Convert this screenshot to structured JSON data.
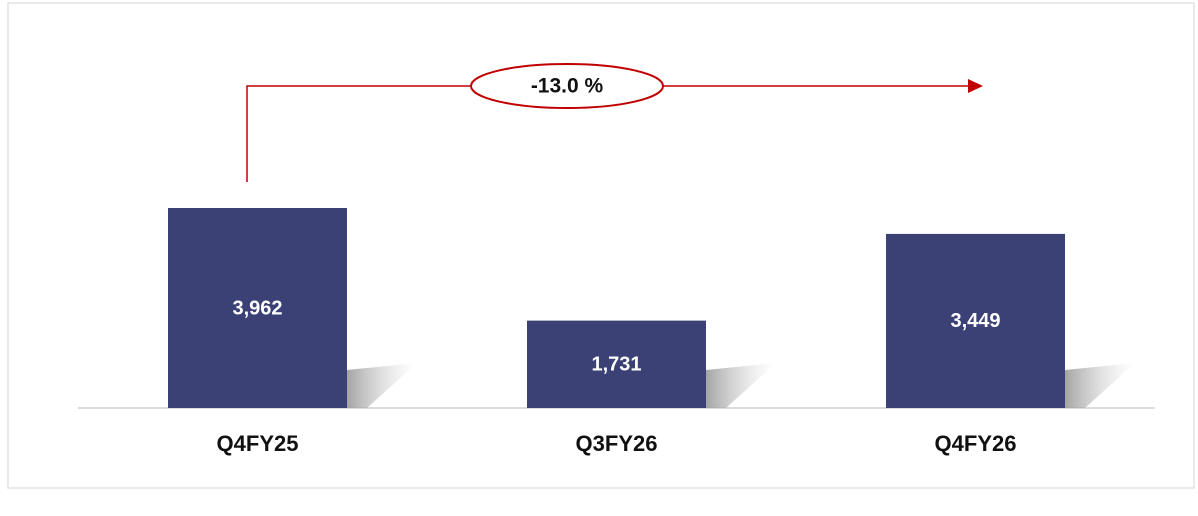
{
  "chart_data": {
    "type": "bar",
    "categories": [
      "Q4FY25",
      "Q3FY26",
      "Q4FY26"
    ],
    "values": [
      3962,
      1731,
      3449
    ],
    "value_labels": [
      "3,962",
      "1,731",
      "3,449"
    ],
    "color": "#3b4175",
    "annotation": "-13.0 %"
  }
}
